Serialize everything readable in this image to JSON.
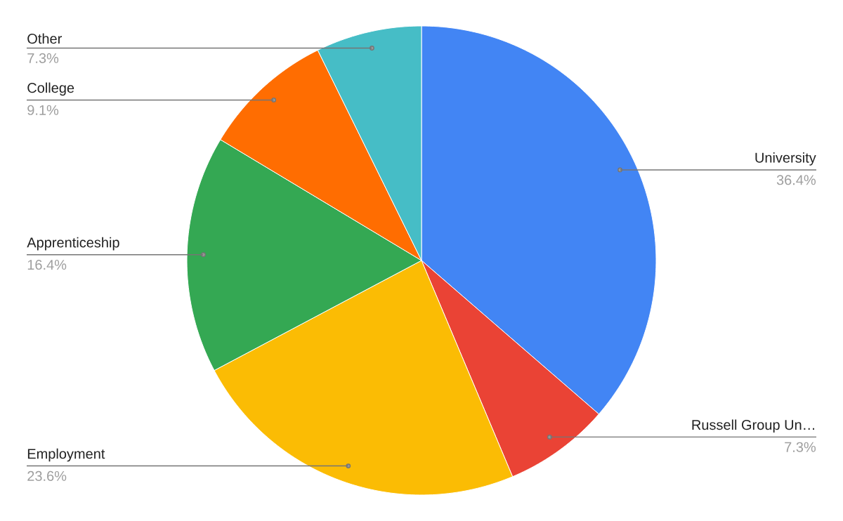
{
  "chart_data": {
    "type": "pie",
    "categories": [
      "University",
      "Russell Group Un…",
      "Employment",
      "Apprenticeship",
      "College",
      "Other"
    ],
    "values": [
      36.4,
      7.3,
      23.6,
      16.4,
      9.1,
      7.3
    ],
    "colors": [
      "#4285f4",
      "#ea4335",
      "#fbbc04",
      "#34a853",
      "#ff6d01",
      "#46bdc6"
    ],
    "value_labels": [
      "36.4%",
      "7.3%",
      "23.6%",
      "16.4%",
      "9.1%",
      "7.3%"
    ]
  }
}
